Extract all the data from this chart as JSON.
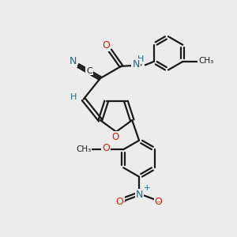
{
  "bg_color": "#ececec",
  "bond_color": "#1a1a1a",
  "bond_width": 1.6,
  "atom_colors": {
    "N": "#1a6b8a",
    "O": "#cc2200",
    "C": "#1a1a1a",
    "H": "#1a6b8a"
  },
  "figsize": [
    3.0,
    3.0
  ],
  "dpi": 100
}
